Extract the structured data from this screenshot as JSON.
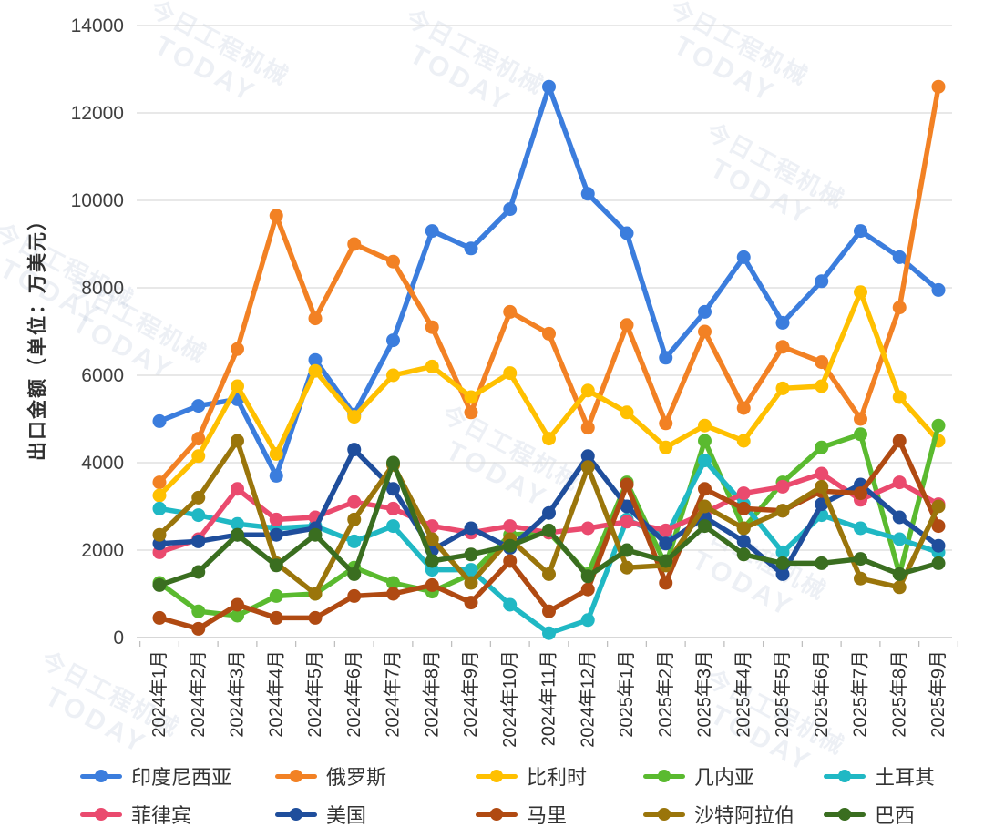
{
  "y_axis_title": "出口金额（单位：万美元）",
  "watermark": {
    "cn": "今日工程机械",
    "en": "TODAY"
  },
  "chart_data": {
    "type": "line",
    "title": "",
    "xlabel": "",
    "ylabel": "出口金额（单位：万美元）",
    "ylim": [
      0,
      14000
    ],
    "y_ticks": [
      0,
      2000,
      4000,
      6000,
      8000,
      10000,
      12000,
      14000
    ],
    "grid": true,
    "legend_position": "bottom",
    "categories": [
      "2024年1月",
      "2024年2月",
      "2024年3月",
      "2024年4月",
      "2024年5月",
      "2024年6月",
      "2024年7月",
      "2024年8月",
      "2024年9月",
      "2024年10月",
      "2024年11月",
      "2024年12月",
      "2025年1月",
      "2025年2月",
      "2025年3月",
      "2025年4月",
      "2025年5月",
      "2025年6月",
      "2025年7月",
      "2025年8月",
      "2025年9月"
    ],
    "series": [
      {
        "name": "印度尼西亚",
        "color": "#3B7DDD",
        "values": [
          4950,
          5300,
          5450,
          3700,
          6350,
          5100,
          6800,
          9300,
          8900,
          9800,
          12600,
          10150,
          9250,
          6400,
          7450,
          8700,
          7200,
          8150,
          9300,
          8700,
          7950
        ]
      },
      {
        "name": "俄罗斯",
        "color": "#F28124",
        "values": [
          3550,
          4550,
          6600,
          9650,
          7300,
          9000,
          8600,
          7100,
          5150,
          7450,
          6950,
          4800,
          7150,
          4900,
          7000,
          5250,
          6650,
          6300,
          5000,
          7550,
          12600
        ]
      },
      {
        "name": "比利时",
        "color": "#FFC000",
        "values": [
          3250,
          4150,
          5750,
          4200,
          6100,
          5050,
          6000,
          6200,
          5500,
          6050,
          4550,
          5650,
          5150,
          4350,
          4850,
          4500,
          5700,
          5750,
          7900,
          5500,
          4500
        ]
      },
      {
        "name": "几内亚",
        "color": "#5ABA2F",
        "values": [
          1250,
          600,
          500,
          950,
          1000,
          1600,
          1250,
          1050,
          1450,
          2350,
          2400,
          1450,
          3550,
          1650,
          4500,
          2500,
          3550,
          4350,
          4650,
          1450,
          4850
        ]
      },
      {
        "name": "土耳其",
        "color": "#20B8C4",
        "values": [
          2950,
          2800,
          2600,
          2500,
          2550,
          2200,
          2550,
          1550,
          1550,
          750,
          100,
          400,
          2700,
          2300,
          4050,
          3050,
          1950,
          2800,
          2500,
          2250,
          1950
        ]
      },
      {
        "name": "菲律宾",
        "color": "#EA4A6E",
        "values": [
          1950,
          2250,
          3400,
          2700,
          2750,
          3100,
          2950,
          2550,
          2400,
          2550,
          2400,
          2500,
          2650,
          2450,
          2850,
          3300,
          3450,
          3750,
          3150,
          3550,
          3050
        ]
      },
      {
        "name": "美国",
        "color": "#1F4E9C",
        "values": [
          2150,
          2200,
          2350,
          2350,
          2500,
          4300,
          3400,
          2000,
          2500,
          2050,
          2850,
          4150,
          3000,
          2150,
          2750,
          2200,
          1450,
          3050,
          3500,
          2750,
          2100
        ]
      },
      {
        "name": "马里",
        "color": "#B04A12",
        "values": [
          450,
          200,
          750,
          450,
          450,
          950,
          1000,
          1200,
          800,
          1750,
          600,
          1100,
          3500,
          1250,
          3400,
          2950,
          2900,
          3350,
          3300,
          4500,
          2550
        ]
      },
      {
        "name": "沙特阿拉伯",
        "color": "#9A750B",
        "values": [
          2350,
          3200,
          4500,
          1700,
          1000,
          2700,
          3950,
          2250,
          1250,
          2250,
          1450,
          3900,
          1600,
          1650,
          3000,
          2500,
          2900,
          3450,
          1350,
          1150,
          3000
        ]
      },
      {
        "name": "巴西",
        "color": "#3A6E20",
        "values": [
          1200,
          1500,
          2350,
          1650,
          2350,
          1450,
          4000,
          1750,
          1900,
          2100,
          2450,
          1400,
          2000,
          1750,
          2550,
          1900,
          1700,
          1700,
          1800,
          1450,
          1700
        ]
      }
    ]
  }
}
